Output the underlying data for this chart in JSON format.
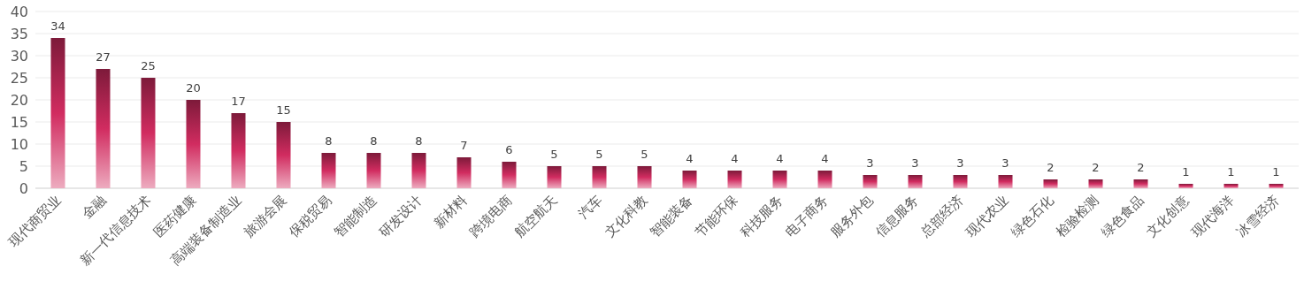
{
  "chart_data": {
    "type": "bar",
    "categories": [
      "现代商贸业",
      "金融",
      "新一代信息技术",
      "医药健康",
      "高端装备制造业",
      "旅游会展",
      "保税贸易",
      "智能制造",
      "研发设计",
      "新材料",
      "跨境电商",
      "航空航天",
      "汽车",
      "文化科教",
      "智能装备",
      "节能环保",
      "科技服务",
      "电子商务",
      "服务外包",
      "信息服务",
      "总部经济",
      "现代农业",
      "绿色石化",
      "检验检测",
      "绿色食品",
      "文化创意",
      "现代海洋",
      "冰雪经济"
    ],
    "values": [
      34,
      27,
      25,
      20,
      17,
      15,
      8,
      8,
      8,
      7,
      6,
      5,
      5,
      5,
      4,
      4,
      4,
      4,
      3,
      3,
      3,
      3,
      2,
      2,
      2,
      1,
      1,
      1
    ],
    "color": "#d12c60",
    "ylim": [
      0,
      40
    ],
    "yticks": [
      0,
      5,
      10,
      15,
      20,
      25,
      30,
      35,
      40
    ],
    "grid": "y",
    "data_labels": true
  }
}
